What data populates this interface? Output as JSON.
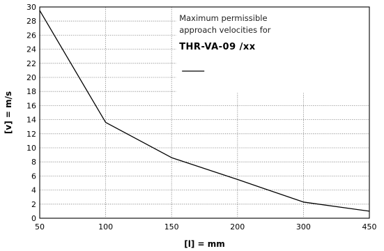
{
  "chart_data": {
    "type": "line",
    "xlabel": "[l] = mm",
    "ylabel": "[v] = m/s",
    "x_tick_labels": [
      "50",
      "100",
      "150",
      "200",
      "300",
      "450"
    ],
    "y_ticks": [
      0,
      2,
      4,
      6,
      8,
      10,
      12,
      14,
      16,
      18,
      20,
      22,
      24,
      26,
      28,
      30
    ],
    "ylim": [
      0,
      30
    ],
    "grid": true,
    "legend_position": "top-right",
    "annotation": {
      "line1": "Maximum permissible",
      "line2": "approach velocities for",
      "model": "THR-VA-09 /xx"
    },
    "series": [
      {
        "x": [
          "50",
          "100",
          "150",
          "200",
          "300",
          "450"
        ],
        "values": [
          29.5,
          13.6,
          8.6,
          5.5,
          2.3,
          1.0
        ]
      }
    ]
  }
}
